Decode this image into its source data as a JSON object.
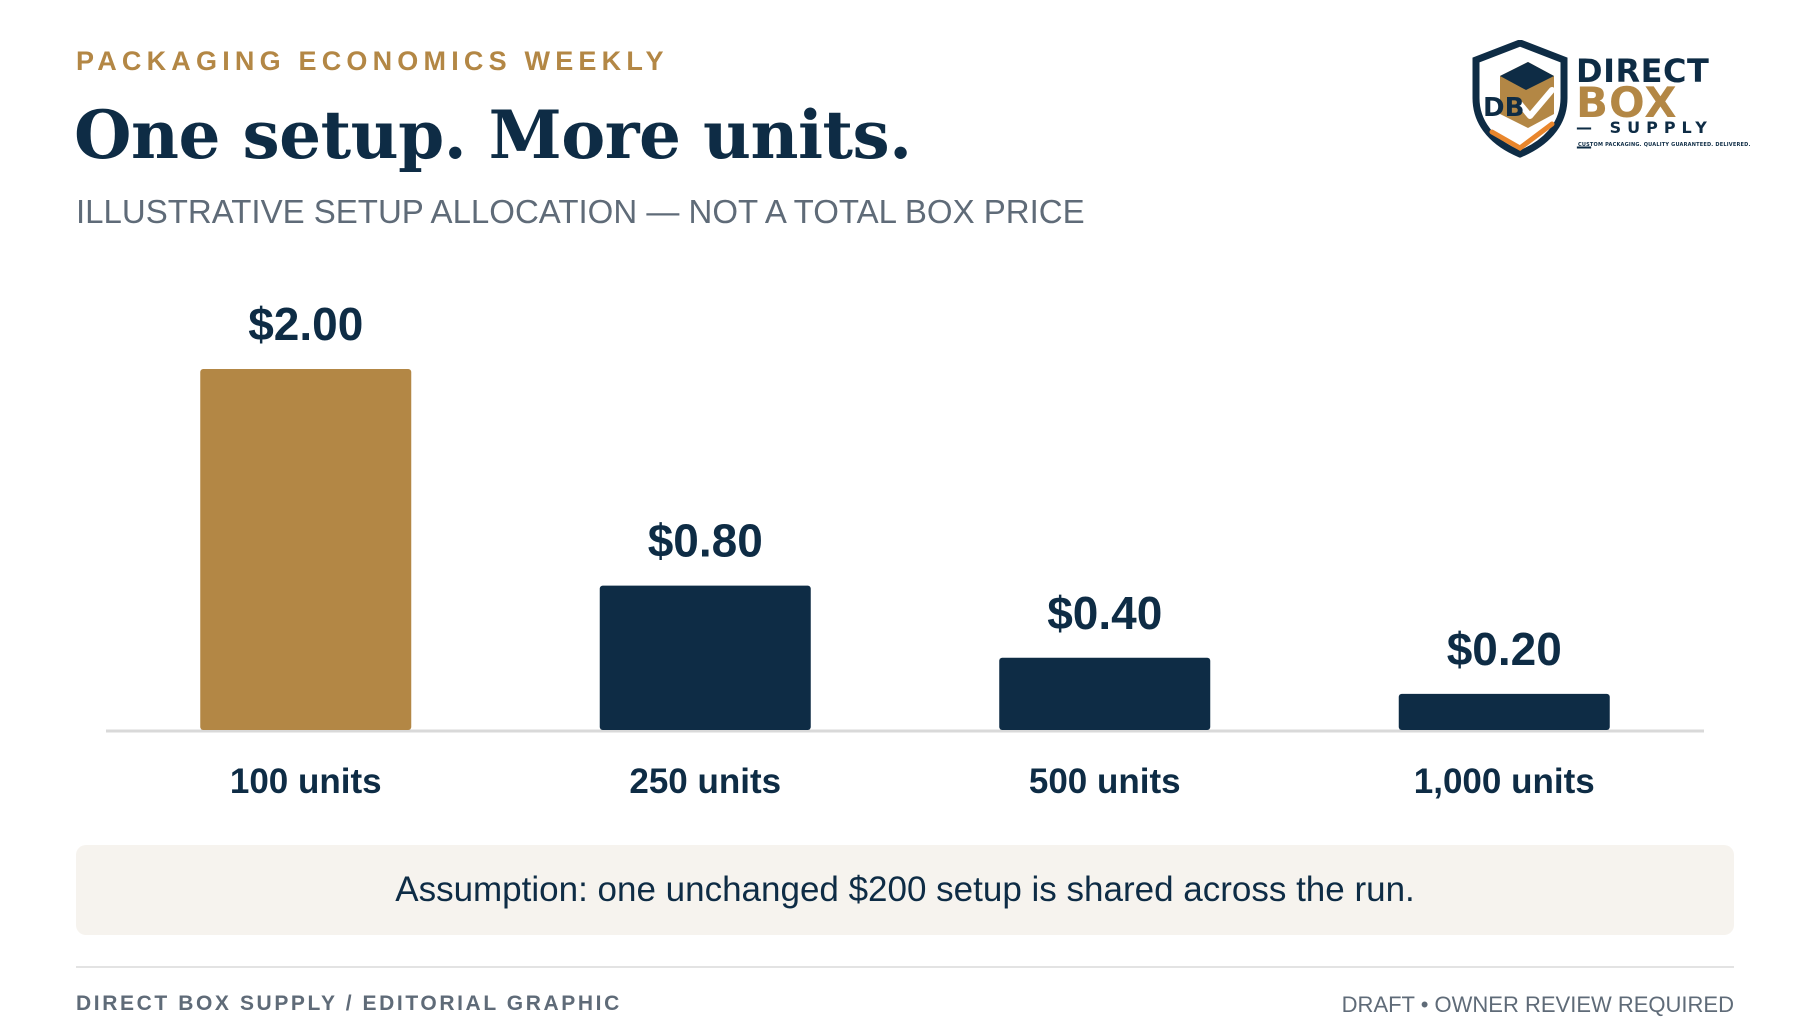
{
  "header": {
    "kicker": "PACKAGING ECONOMICS WEEKLY",
    "title": "One setup. More units.",
    "subtitle": "ILLUSTRATIVE SETUP ALLOCATION — NOT A TOTAL BOX PRICE"
  },
  "logo": {
    "word1": "DIRECT",
    "word2": "BOX",
    "word3": "— SUPPLY —",
    "tagline": "CUSTOM PACKAGING. QUALITY GUARANTEED. DELIVERED.",
    "monogram": "DB",
    "icon": "shield-box-check-icon"
  },
  "chart_data": {
    "type": "bar",
    "categories": [
      "100 units",
      "250 units",
      "500 units",
      "1,000 units"
    ],
    "values": [
      2.0,
      0.8,
      0.4,
      0.2
    ],
    "value_labels": [
      "$2.00",
      "$0.80",
      "$0.40",
      "$0.20"
    ],
    "ylim": [
      0,
      2.0
    ],
    "grid": false,
    "highlight_index": 0
  },
  "colors": {
    "highlight": "#b38745",
    "bar": "#0e2c45",
    "text": "#0e2c45",
    "muted": "#5f6b78",
    "baseline": "#d9d9d9"
  },
  "note": "Assumption: one unchanged $200 setup is shared across the run.",
  "footer": {
    "left": "DIRECT BOX SUPPLY / EDITORIAL GRAPHIC",
    "right": "DRAFT • OWNER REVIEW REQUIRED"
  }
}
